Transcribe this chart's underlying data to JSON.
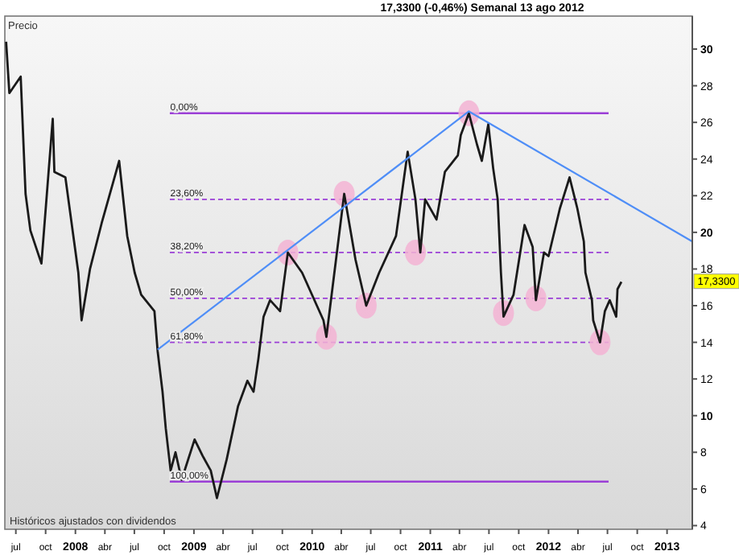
{
  "chart_data": {
    "type": "line",
    "title": "17,3300 (-0,46%)   Semanal  13 ago 2012",
    "ylabel": "Precio",
    "annotations": [
      "Históricos ajustados con dividendos",
      {
        "text": "17,3300",
        "y": 17.33
      },
      {
        "text": "0,00%",
        "x": "2008-10-15",
        "y": 26.5
      },
      {
        "text": "23,60%",
        "x": "2008-10-15",
        "y": 21.8
      },
      {
        "text": "38,20%",
        "x": "2008-10-15",
        "y": 18.9
      },
      {
        "text": "50,00%",
        "x": "2008-10-15",
        "y": 16.4
      },
      {
        "text": "61,80%",
        "x": "2008-10-15",
        "y": 14.0
      },
      {
        "text": "100,00%",
        "x": "2008-10-15",
        "y": 6.4
      }
    ],
    "xlim": [
      "2007-05-28",
      "2013-03-20"
    ],
    "ylim": [
      3.8,
      31.8
    ],
    "xticks": [
      {
        "value": "2007-07-01",
        "label": "jul"
      },
      {
        "value": "2007-10-01",
        "label": "oct"
      },
      {
        "value": "2008-01-01",
        "label": "2008"
      },
      {
        "value": "2008-04-01",
        "label": "abr"
      },
      {
        "value": "2008-07-01",
        "label": "jul"
      },
      {
        "value": "2008-10-01",
        "label": "oct"
      },
      {
        "value": "2009-01-01",
        "label": "2009"
      },
      {
        "value": "2009-04-01",
        "label": "abr"
      },
      {
        "value": "2009-07-01",
        "label": "jul"
      },
      {
        "value": "2009-10-01",
        "label": "oct"
      },
      {
        "value": "2010-01-01",
        "label": "2010"
      },
      {
        "value": "2010-04-01",
        "label": "abr"
      },
      {
        "value": "2010-07-01",
        "label": "jul"
      },
      {
        "value": "2010-10-01",
        "label": "oct"
      },
      {
        "value": "2011-01-01",
        "label": "2011"
      },
      {
        "value": "2011-04-01",
        "label": "abr"
      },
      {
        "value": "2011-07-01",
        "label": "jul"
      },
      {
        "value": "2011-10-01",
        "label": "oct"
      },
      {
        "value": "2012-01-01",
        "label": "2012"
      },
      {
        "value": "2012-04-01",
        "label": "abr"
      },
      {
        "value": "2012-07-01",
        "label": "jul"
      },
      {
        "value": "2012-10-01",
        "label": "oct"
      },
      {
        "value": "2013-01-01",
        "label": "2013"
      }
    ],
    "yticks": [
      4,
      6,
      8,
      10,
      12,
      14,
      16,
      18,
      20,
      22,
      24,
      26,
      28,
      30
    ],
    "grid": false,
    "ref_lines": [
      {
        "axis": "y",
        "value": 26.5,
        "color": "#9b3fd6",
        "line_style": "solid"
      },
      {
        "axis": "y",
        "value": 21.8,
        "color": "#9b3fd6",
        "line_style": "dashed"
      },
      {
        "axis": "y",
        "value": 18.9,
        "color": "#9b3fd6",
        "line_style": "dashed"
      },
      {
        "axis": "y",
        "value": 16.4,
        "color": "#9b3fd6",
        "line_style": "dashed"
      },
      {
        "axis": "y",
        "value": 14.0,
        "color": "#9b3fd6",
        "line_style": "dashed"
      },
      {
        "axis": "y",
        "value": 6.4,
        "color": "#9b3fd6",
        "line_style": "solid"
      }
    ],
    "series": [
      {
        "color": "#1a1a1a",
        "x": [
          "2007-06-01",
          "2007-06-11",
          "2007-07-16",
          "2007-07-31",
          "2007-08-15",
          "2007-09-18",
          "2007-10-23",
          "2007-10-28",
          "2007-12-01",
          "2008-01-10",
          "2008-01-20",
          "2008-02-15",
          "2008-03-22",
          "2008-05-15",
          "2008-06-09",
          "2008-07-02",
          "2008-07-22",
          "2008-09-01",
          "2008-09-11",
          "2008-09-26",
          "2008-10-06",
          "2008-10-21",
          "2008-11-05",
          "2008-11-24",
          "2009-01-03",
          "2009-01-28",
          "2009-02-22",
          "2009-03-13",
          "2009-04-12",
          "2009-05-17",
          "2009-06-15",
          "2009-07-04",
          "2009-07-19",
          "2009-08-04",
          "2009-08-24",
          "2009-09-24",
          "2009-10-18",
          "2009-12-01",
          "2010-02-05",
          "2010-02-14",
          "2010-04-10",
          "2010-05-15",
          "2010-06-17",
          "2010-07-27",
          "2010-09-17",
          "2010-10-12",
          "2010-10-23",
          "2010-11-16",
          "2010-12-01",
          "2010-12-16",
          "2011-01-20",
          "2011-02-15",
          "2011-03-27",
          "2011-04-05",
          "2011-04-30",
          "2011-05-25",
          "2011-06-09",
          "2011-06-29",
          "2011-07-14",
          "2011-07-28",
          "2011-08-07",
          "2011-08-15",
          "2011-09-15",
          "2011-10-19",
          "2011-11-13",
          "2011-11-23",
          "2011-12-18",
          "2012-01-01",
          "2012-02-05",
          "2012-03-06",
          "2012-03-30",
          "2012-04-19",
          "2012-04-24",
          "2012-05-14",
          "2012-05-18",
          "2012-06-08",
          "2012-06-23",
          "2012-07-08",
          "2012-07-28",
          "2012-08-01",
          "2012-08-13"
        ],
        "values": [
          30.4,
          27.6,
          28.5,
          22.1,
          20.1,
          18.3,
          26.2,
          23.3,
          23.0,
          17.8,
          15.2,
          18.0,
          20.5,
          23.9,
          19.8,
          17.8,
          16.6,
          15.7,
          13.5,
          11.3,
          9.3,
          7.0,
          8.0,
          6.5,
          8.7,
          7.8,
          7.0,
          5.5,
          7.6,
          10.5,
          11.9,
          11.3,
          13.1,
          15.4,
          16.3,
          15.7,
          18.9,
          17.8,
          15.2,
          14.3,
          22.1,
          18.5,
          16.0,
          17.8,
          19.8,
          23.0,
          24.4,
          21.8,
          18.9,
          21.8,
          20.7,
          23.3,
          24.2,
          25.3,
          26.5,
          24.8,
          23.9,
          25.9,
          23.5,
          21.8,
          17.8,
          15.4,
          16.6,
          20.4,
          19.2,
          16.3,
          18.9,
          18.7,
          21.3,
          23.0,
          21.3,
          19.5,
          17.8,
          16.3,
          15.2,
          14.0,
          15.7,
          16.3,
          15.4,
          16.9,
          17.3
        ]
      },
      {
        "type": "line",
        "color": "#4f8ef7",
        "x": [
          "2008-09-11",
          "2011-04-30",
          "2013-03-20"
        ],
        "values": [
          13.6,
          26.6,
          19.5
        ]
      },
      {
        "type": "scatter",
        "color": "#f3b3d3",
        "marker": "circle",
        "x": [
          "2009-10-18",
          "2010-02-14",
          "2010-04-10",
          "2010-06-17",
          "2010-11-16",
          "2011-04-30",
          "2011-08-15",
          "2011-11-23",
          "2012-06-08"
        ],
        "values": [
          18.9,
          14.3,
          22.1,
          16.0,
          18.9,
          26.5,
          15.6,
          16.4,
          14.0
        ]
      }
    ]
  }
}
